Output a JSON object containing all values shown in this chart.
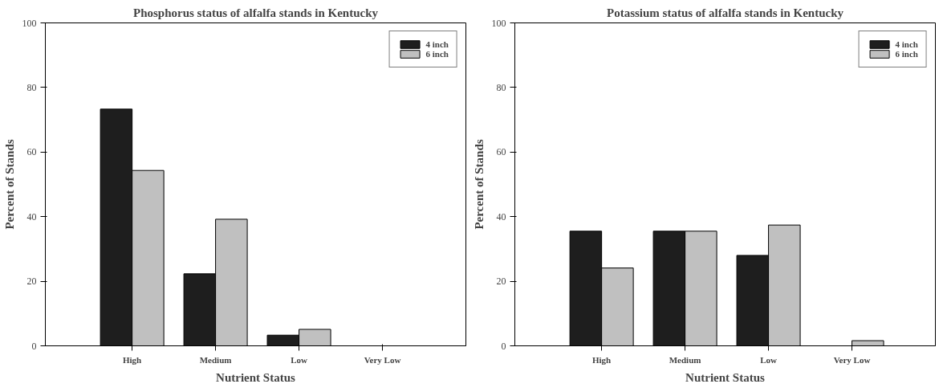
{
  "chart_data": [
    {
      "type": "bar",
      "title": "Phosphorus status of alfalfa stands in Kentucky",
      "xlabel": "Nutrient Status",
      "ylabel": "Percent of Stands",
      "categories": [
        "High",
        "Medium",
        "Low",
        "Very Low"
      ],
      "series": [
        {
          "name": "4 inch",
          "color": "#1e1e1e",
          "values": [
            73.3,
            22.3,
            3.3,
            0
          ]
        },
        {
          "name": "6 inch",
          "color": "#c0c0c0",
          "values": [
            54.3,
            39.2,
            5.1,
            0
          ]
        }
      ],
      "ylim": [
        0,
        100
      ],
      "yticks": [
        0,
        20,
        40,
        60,
        80,
        100
      ],
      "grid": false,
      "legend": "top right"
    },
    {
      "type": "bar",
      "title": "Potassium status of alfalfa stands in Kentucky",
      "xlabel": "Nutrient Status",
      "ylabel": "Percent of Stands",
      "categories": [
        "High",
        "Medium",
        "Low",
        "Very Low"
      ],
      "series": [
        {
          "name": "4 inch",
          "color": "#1e1e1e",
          "values": [
            35.5,
            35.5,
            28.0,
            0
          ]
        },
        {
          "name": "6 inch",
          "color": "#c0c0c0",
          "values": [
            24.1,
            35.5,
            37.4,
            1.6
          ]
        }
      ],
      "ylim": [
        0,
        100
      ],
      "yticks": [
        0,
        20,
        40,
        60,
        80,
        100
      ],
      "grid": false,
      "legend": "top right"
    }
  ]
}
